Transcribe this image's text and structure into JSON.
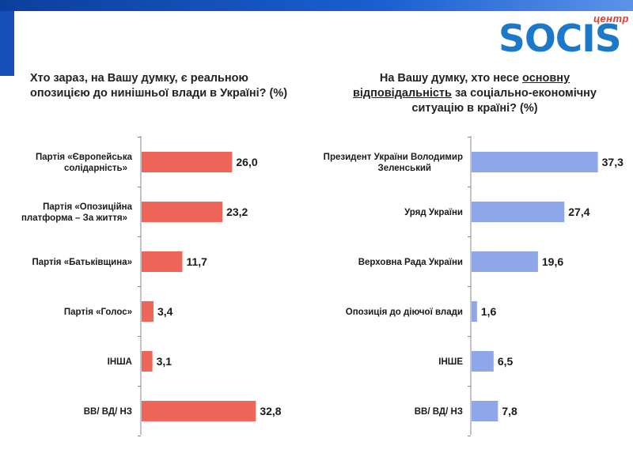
{
  "logo": {
    "small": "центр",
    "main": "SOCIS"
  },
  "chart_data": [
    {
      "type": "bar",
      "orientation": "horizontal",
      "title": "Хто зараз, на Вашу думку, є реальною опозицією до нинішньої влади в Україні? (%)",
      "categories": [
        [
          "Партія «Європейська",
          "солідарність»"
        ],
        [
          "Партія «Опозиційна",
          "платформа – За життя»"
        ],
        [
          "Партія «Батьківщина»"
        ],
        [
          "Партія «Голос»"
        ],
        [
          "ІНША"
        ],
        [
          "ВВ/ ВД/ НЗ"
        ]
      ],
      "values": [
        26.0,
        23.2,
        11.7,
        3.4,
        3.1,
        32.8
      ],
      "value_labels": [
        "26,0",
        "23,2",
        "11,7",
        "3,4",
        "3,1",
        "32,8"
      ],
      "color": "#f0655a",
      "xlim": [
        0,
        40
      ]
    },
    {
      "type": "bar",
      "orientation": "horizontal",
      "title_parts": [
        "На Вашу думку, хто несе ",
        "основну відповідальність",
        " за соціально-економічну ситуацію в країні? (%)"
      ],
      "categories": [
        [
          "Президент України Володимир",
          "Зеленський"
        ],
        [
          "Уряд України"
        ],
        [
          "Верховна Рада України"
        ],
        [
          "Опозиція до діючої влади"
        ],
        [
          "ІНШЕ"
        ],
        [
          "ВВ/ ВД/ НЗ"
        ]
      ],
      "values": [
        37.3,
        27.4,
        19.6,
        1.6,
        6.5,
        7.8
      ],
      "value_labels": [
        "37,3",
        "27,4",
        "19,6",
        "1,6",
        "6,5",
        "7,8"
      ],
      "color": "#8fa6e8",
      "xlim": [
        0,
        40
      ]
    }
  ]
}
